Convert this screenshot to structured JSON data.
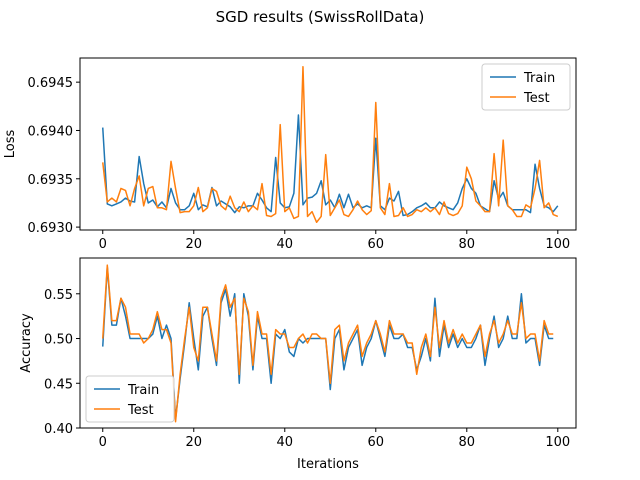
{
  "figure": {
    "title": "SGD results (SwissRollData)"
  },
  "colors": {
    "train": "#1f77b4",
    "test": "#ff7f0e"
  },
  "chart_data": [
    {
      "type": "line",
      "name": "loss",
      "ylabel": "Loss",
      "xlabel": "",
      "xlim": [
        -5,
        104
      ],
      "ylim": [
        0.69297,
        0.69475
      ],
      "xticks": [
        0,
        20,
        40,
        60,
        80,
        100
      ],
      "yticks": [
        0.693,
        0.6935,
        0.694,
        0.6945
      ],
      "ytick_labels": [
        "0.6930",
        "0.6935",
        "0.6940",
        "0.6945"
      ],
      "legend": {
        "placement": "top-right",
        "entries": [
          "Train",
          "Test"
        ]
      },
      "series": [
        {
          "name": "Train",
          "x_start": 0,
          "values": [
            0.69403,
            0.69324,
            0.69322,
            0.69324,
            0.69326,
            0.6933,
            0.69327,
            0.69326,
            0.69373,
            0.69345,
            0.69325,
            0.69328,
            0.69321,
            0.69326,
            0.6932,
            0.6934,
            0.69325,
            0.69318,
            0.69318,
            0.69322,
            0.69335,
            0.69318,
            0.69323,
            0.69321,
            0.69341,
            0.69322,
            0.69327,
            0.69324,
            0.69321,
            0.69315,
            0.69321,
            0.6932,
            0.69322,
            0.69322,
            0.69335,
            0.69328,
            0.6932,
            0.69316,
            0.69372,
            0.69325,
            0.6932,
            0.69321,
            0.69335,
            0.69416,
            0.69323,
            0.6933,
            0.69331,
            0.69335,
            0.69348,
            0.69323,
            0.69328,
            0.6932,
            0.69334,
            0.6932,
            0.69334,
            0.6932,
            0.69324,
            0.6932,
            0.69322,
            0.6932,
            0.69392,
            0.69322,
            0.69318,
            0.6933,
            0.69327,
            0.69337,
            0.69312,
            0.69313,
            0.69316,
            0.6932,
            0.69322,
            0.69325,
            0.6932,
            0.6932,
            0.69326,
            0.69322,
            0.6932,
            0.69318,
            0.69325,
            0.6934,
            0.6935,
            0.6934,
            0.69335,
            0.69322,
            0.69319,
            0.69316,
            0.69348,
            0.69329,
            0.69336,
            0.69322,
            0.69318,
            0.69318,
            0.69318,
            0.69318,
            0.69315,
            0.69365,
            0.6934,
            0.69322,
            0.6932,
            0.69316,
            0.69322
          ]
        },
        {
          "name": "Test",
          "x_start": 0,
          "values": [
            0.69367,
            0.69326,
            0.6933,
            0.69326,
            0.6934,
            0.69338,
            0.69322,
            0.6934,
            0.69353,
            0.69322,
            0.6934,
            0.69342,
            0.6932,
            0.6932,
            0.69318,
            0.69368,
            0.6934,
            0.69315,
            0.69316,
            0.69316,
            0.69322,
            0.69341,
            0.69316,
            0.6932,
            0.6934,
            0.69337,
            0.69322,
            0.69318,
            0.69332,
            0.6932,
            0.69316,
            0.69326,
            0.69316,
            0.69322,
            0.69318,
            0.69345,
            0.69312,
            0.69311,
            0.69314,
            0.69406,
            0.69316,
            0.6932,
            0.69309,
            0.69311,
            0.69466,
            0.69311,
            0.69316,
            0.69305,
            0.69311,
            0.69375,
            0.69312,
            0.6932,
            0.69328,
            0.69313,
            0.69311,
            0.69318,
            0.69327,
            0.69318,
            0.69313,
            0.69317,
            0.69429,
            0.6932,
            0.69313,
            0.69345,
            0.69311,
            0.69312,
            0.6932,
            0.69311,
            0.69313,
            0.69318,
            0.69316,
            0.6932,
            0.69316,
            0.6932,
            0.69313,
            0.69326,
            0.69314,
            0.69312,
            0.69314,
            0.69322,
            0.69362,
            0.6935,
            0.69327,
            0.69322,
            0.69316,
            0.69316,
            0.69376,
            0.69322,
            0.6939,
            0.69322,
            0.69318,
            0.69311,
            0.69311,
            0.69323,
            0.6932,
            0.6934,
            0.69369,
            0.6932,
            0.69325,
            0.69313,
            0.69311
          ]
        }
      ]
    },
    {
      "type": "line",
      "name": "accuracy",
      "ylabel": "Accuracy",
      "xlabel": "Iterations",
      "xlim": [
        -5,
        104
      ],
      "ylim": [
        0.4,
        0.59
      ],
      "xticks": [
        0,
        20,
        40,
        60,
        80,
        100
      ],
      "yticks": [
        0.4,
        0.45,
        0.5,
        0.55
      ],
      "ytick_labels": [
        "0.40",
        "0.45",
        "0.50",
        "0.55"
      ],
      "legend": {
        "placement": "bottom-left",
        "entries": [
          "Train",
          "Test"
        ]
      },
      "series": [
        {
          "name": "Train",
          "x_start": 0,
          "values": [
            0.491,
            0.58,
            0.515,
            0.515,
            0.545,
            0.525,
            0.5,
            0.5,
            0.5,
            0.5,
            0.5,
            0.505,
            0.525,
            0.5,
            0.515,
            0.5,
            0.41,
            0.455,
            0.495,
            0.54,
            0.5,
            0.465,
            0.525,
            0.535,
            0.5,
            0.47,
            0.54,
            0.555,
            0.525,
            0.55,
            0.45,
            0.55,
            0.525,
            0.465,
            0.525,
            0.5,
            0.5,
            0.45,
            0.505,
            0.5,
            0.51,
            0.485,
            0.48,
            0.5,
            0.495,
            0.5,
            0.5,
            0.5,
            0.5,
            0.5,
            0.443,
            0.5,
            0.51,
            0.465,
            0.49,
            0.5,
            0.51,
            0.47,
            0.49,
            0.5,
            0.52,
            0.5,
            0.48,
            0.515,
            0.5,
            0.5,
            0.505,
            0.49,
            0.49,
            0.465,
            0.48,
            0.5,
            0.475,
            0.545,
            0.48,
            0.515,
            0.49,
            0.505,
            0.49,
            0.5,
            0.49,
            0.49,
            0.5,
            0.515,
            0.47,
            0.5,
            0.525,
            0.49,
            0.5,
            0.525,
            0.5,
            0.5,
            0.55,
            0.495,
            0.5,
            0.5,
            0.47,
            0.515,
            0.5,
            0.5
          ]
        },
        {
          "name": "Test",
          "x_start": 0,
          "values": [
            0.5,
            0.582,
            0.52,
            0.52,
            0.545,
            0.535,
            0.505,
            0.505,
            0.505,
            0.495,
            0.5,
            0.51,
            0.53,
            0.51,
            0.51,
            0.495,
            0.407,
            0.46,
            0.5,
            0.535,
            0.49,
            0.475,
            0.535,
            0.535,
            0.505,
            0.475,
            0.545,
            0.56,
            0.535,
            0.545,
            0.46,
            0.545,
            0.53,
            0.47,
            0.53,
            0.505,
            0.505,
            0.46,
            0.51,
            0.505,
            0.505,
            0.49,
            0.49,
            0.5,
            0.505,
            0.495,
            0.505,
            0.505,
            0.5,
            0.5,
            0.45,
            0.51,
            0.515,
            0.475,
            0.495,
            0.505,
            0.515,
            0.48,
            0.495,
            0.505,
            0.52,
            0.505,
            0.485,
            0.52,
            0.505,
            0.505,
            0.505,
            0.495,
            0.495,
            0.46,
            0.49,
            0.505,
            0.48,
            0.535,
            0.49,
            0.52,
            0.495,
            0.51,
            0.495,
            0.505,
            0.495,
            0.495,
            0.505,
            0.515,
            0.48,
            0.505,
            0.52,
            0.495,
            0.505,
            0.52,
            0.505,
            0.505,
            0.54,
            0.5,
            0.505,
            0.505,
            0.475,
            0.52,
            0.505,
            0.505
          ]
        }
      ]
    }
  ]
}
